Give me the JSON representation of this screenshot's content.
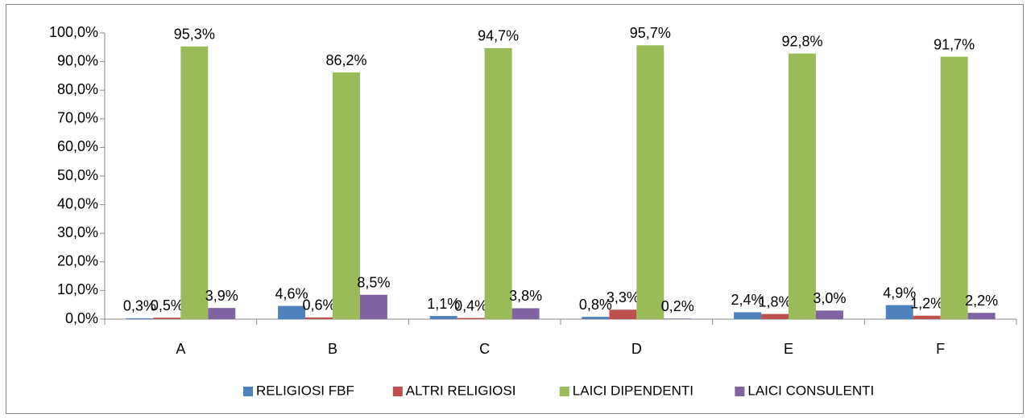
{
  "chart_data": {
    "type": "bar",
    "categories": [
      "A",
      "B",
      "C",
      "D",
      "E",
      "F"
    ],
    "series": [
      {
        "name": "RELIGIOSI FBF",
        "color": "#4f81bd",
        "values": [
          0.3,
          4.6,
          1.1,
          0.8,
          2.4,
          4.9
        ],
        "value_labels": [
          "0,3%",
          "4,6%",
          "1,1%",
          "0,8%",
          "2,4%",
          "4,9%"
        ]
      },
      {
        "name": "ALTRI RELIGIOSI",
        "color": "#c0504d",
        "values": [
          0.5,
          0.6,
          0.4,
          3.3,
          1.8,
          1.2
        ],
        "value_labels": [
          "0,5%",
          "0,6%",
          "0,4%",
          "3,3%",
          "1,8%",
          "1,2%"
        ]
      },
      {
        "name": "LAICI DIPENDENTI",
        "color": "#9bbb59",
        "values": [
          95.3,
          86.2,
          94.7,
          95.7,
          92.8,
          91.7
        ],
        "value_labels": [
          "95,3%",
          "86,2%",
          "94,7%",
          "95,7%",
          "92,8%",
          "91,7%"
        ]
      },
      {
        "name": "LAICI CONSULENTI",
        "color": "#8064a2",
        "values": [
          3.9,
          8.5,
          3.8,
          0.2,
          3.0,
          2.2
        ],
        "value_labels": [
          "3,9%",
          "8,5%",
          "3,8%",
          "0,2%",
          "3,0%",
          "2,2%"
        ]
      }
    ],
    "ylim": [
      0,
      100
    ],
    "yticks": [
      {
        "value": 0,
        "label": "0,0%"
      },
      {
        "value": 10,
        "label": "10,0%"
      },
      {
        "value": 20,
        "label": "20,0%"
      },
      {
        "value": 30,
        "label": "30,0%"
      },
      {
        "value": 40,
        "label": "40,0%"
      },
      {
        "value": 50,
        "label": "50,0%"
      },
      {
        "value": 60,
        "label": "60,0%"
      },
      {
        "value": 70,
        "label": "70,0%"
      },
      {
        "value": 80,
        "label": "80,0%"
      },
      {
        "value": 90,
        "label": "90,0%"
      },
      {
        "value": 100,
        "label": "100,0%"
      }
    ],
    "legend": "bottom"
  }
}
